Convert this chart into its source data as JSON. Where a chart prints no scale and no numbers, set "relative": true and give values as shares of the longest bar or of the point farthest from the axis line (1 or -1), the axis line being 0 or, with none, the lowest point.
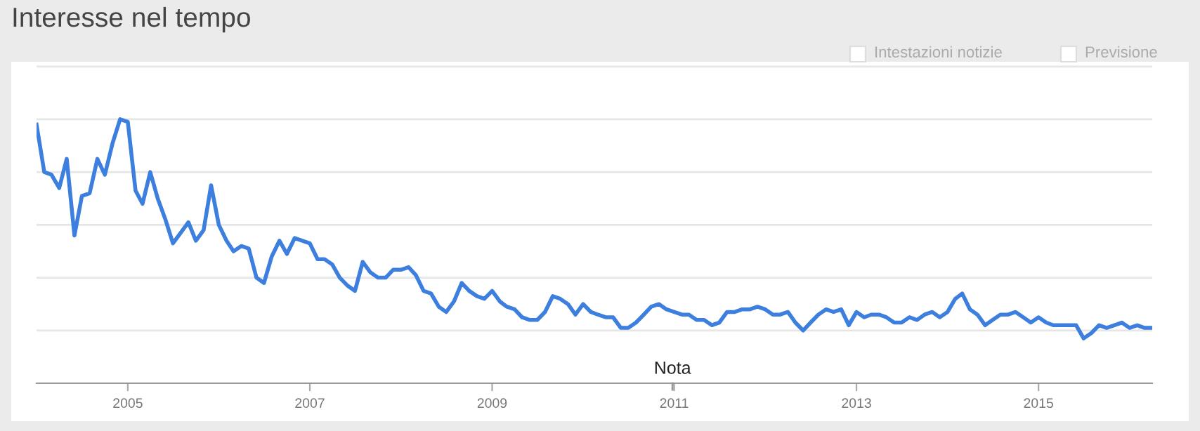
{
  "chart_data": {
    "type": "line",
    "title": "Interesse nel tempo",
    "relative": true,
    "grid": "y",
    "marker": "none",
    "line_style": "solid",
    "xlim": [
      "2004-01",
      "2016-04"
    ],
    "xticks": [
      {
        "value": "2005-01",
        "label": "2005"
      },
      {
        "value": "2007-01",
        "label": "2007"
      },
      {
        "value": "2009-01",
        "label": "2009"
      },
      {
        "value": "2011-01",
        "label": "2011"
      },
      {
        "value": "2013-01",
        "label": "2013"
      },
      {
        "value": "2015-01",
        "label": "2015"
      }
    ],
    "annotations": [
      "Intestazioni notizie",
      "Previsione",
      "Nota"
    ],
    "x": [
      "2004-01",
      "2004-02",
      "2004-03",
      "2004-04",
      "2004-05",
      "2004-06",
      "2004-07",
      "2004-08",
      "2004-09",
      "2004-10",
      "2004-11",
      "2004-12",
      "2005-01",
      "2005-02",
      "2005-03",
      "2005-04",
      "2005-05",
      "2005-06",
      "2005-07",
      "2005-08",
      "2005-09",
      "2005-10",
      "2005-11",
      "2005-12",
      "2006-01",
      "2006-02",
      "2006-03",
      "2006-04",
      "2006-05",
      "2006-06",
      "2006-07",
      "2006-08",
      "2006-09",
      "2006-10",
      "2006-11",
      "2006-12",
      "2007-01",
      "2007-02",
      "2007-03",
      "2007-04",
      "2007-05",
      "2007-06",
      "2007-07",
      "2007-08",
      "2007-09",
      "2007-10",
      "2007-11",
      "2007-12",
      "2008-01",
      "2008-02",
      "2008-03",
      "2008-04",
      "2008-05",
      "2008-06",
      "2008-07",
      "2008-08",
      "2008-09",
      "2008-10",
      "2008-11",
      "2008-12",
      "2009-01",
      "2009-02",
      "2009-03",
      "2009-04",
      "2009-05",
      "2009-06",
      "2009-07",
      "2009-08",
      "2009-09",
      "2009-10",
      "2009-11",
      "2009-12",
      "2010-01",
      "2010-02",
      "2010-03",
      "2010-04",
      "2010-05",
      "2010-06",
      "2010-07",
      "2010-08",
      "2010-09",
      "2010-10",
      "2010-11",
      "2010-12",
      "2011-01",
      "2011-02",
      "2011-03",
      "2011-04",
      "2011-05",
      "2011-06",
      "2011-07",
      "2011-08",
      "2011-09",
      "2011-10",
      "2011-11",
      "2011-12",
      "2012-01",
      "2012-02",
      "2012-03",
      "2012-04",
      "2012-05",
      "2012-06",
      "2012-07",
      "2012-08",
      "2012-09",
      "2012-10",
      "2012-11",
      "2012-12",
      "2013-01",
      "2013-02",
      "2013-03",
      "2013-04",
      "2013-05",
      "2013-06",
      "2013-07",
      "2013-08",
      "2013-09",
      "2013-10",
      "2013-11",
      "2013-12",
      "2014-01",
      "2014-02",
      "2014-03",
      "2014-04",
      "2014-05",
      "2014-06",
      "2014-07",
      "2014-08",
      "2014-09",
      "2014-10",
      "2014-11",
      "2014-12",
      "2015-01",
      "2015-02",
      "2015-03",
      "2015-04",
      "2015-05",
      "2015-06",
      "2015-07",
      "2015-08",
      "2015-09",
      "2015-10",
      "2015-11",
      "2015-12",
      "2016-01",
      "2016-02",
      "2016-03",
      "2016-04"
    ],
    "series": [
      {
        "color": "#3d7fde",
        "values": [
          0.98,
          0.8,
          0.79,
          0.74,
          0.85,
          0.56,
          0.71,
          0.72,
          0.85,
          0.79,
          0.91,
          1.0,
          0.99,
          0.73,
          0.68,
          0.8,
          0.7,
          0.62,
          0.53,
          0.57,
          0.61,
          0.54,
          0.58,
          0.75,
          0.6,
          0.54,
          0.5,
          0.52,
          0.51,
          0.4,
          0.38,
          0.48,
          0.54,
          0.49,
          0.55,
          0.54,
          0.53,
          0.47,
          0.47,
          0.45,
          0.4,
          0.37,
          0.35,
          0.46,
          0.42,
          0.4,
          0.4,
          0.43,
          0.43,
          0.44,
          0.41,
          0.35,
          0.34,
          0.29,
          0.27,
          0.31,
          0.38,
          0.35,
          0.33,
          0.32,
          0.35,
          0.31,
          0.29,
          0.28,
          0.25,
          0.24,
          0.24,
          0.27,
          0.33,
          0.32,
          0.3,
          0.26,
          0.3,
          0.27,
          0.26,
          0.25,
          0.25,
          0.21,
          0.21,
          0.23,
          0.26,
          0.29,
          0.3,
          0.28,
          0.27,
          0.26,
          0.26,
          0.24,
          0.24,
          0.22,
          0.23,
          0.27,
          0.27,
          0.28,
          0.28,
          0.29,
          0.28,
          0.26,
          0.26,
          0.27,
          0.23,
          0.2,
          0.23,
          0.26,
          0.28,
          0.27,
          0.28,
          0.22,
          0.27,
          0.25,
          0.26,
          0.26,
          0.25,
          0.23,
          0.23,
          0.25,
          0.24,
          0.26,
          0.27,
          0.25,
          0.27,
          0.32,
          0.34,
          0.28,
          0.26,
          0.22,
          0.24,
          0.26,
          0.26,
          0.27,
          0.25,
          0.23,
          0.25,
          0.23,
          0.22,
          0.22,
          0.22,
          0.22,
          0.17,
          0.19,
          0.22,
          0.21,
          0.22,
          0.23,
          0.21,
          0.22,
          0.21,
          0.21
        ]
      }
    ]
  }
}
